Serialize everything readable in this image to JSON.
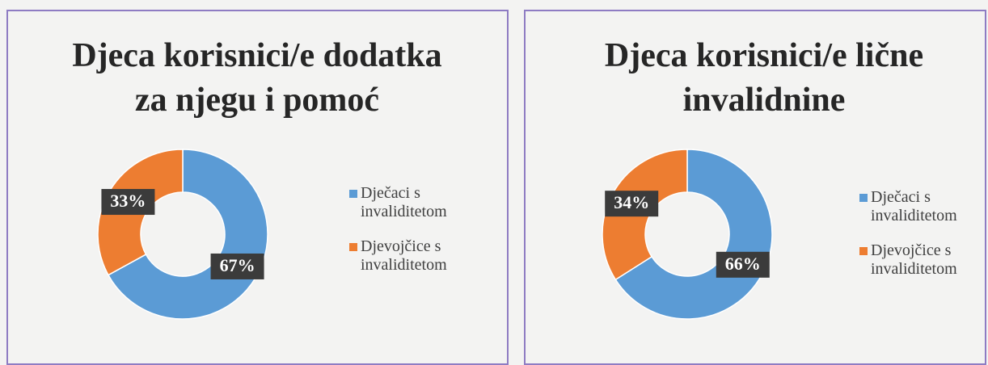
{
  "chart_data": [
    {
      "type": "donut",
      "title": "Djeca korisnici/e dodatka za njegu i pomoć",
      "categories": [
        "Dječaci s invaliditetom",
        "Djevojčice s invaliditetom"
      ],
      "values": [
        67,
        33
      ],
      "value_labels": [
        "67%",
        "33%"
      ],
      "colors": [
        "#5b9bd5",
        "#ed7d31"
      ],
      "legend": "right"
    },
    {
      "type": "donut",
      "title": "Djeca korisnici/e lične invalidnine",
      "categories": [
        "Dječaci s invaliditetom",
        "Djevojčice s invaliditetom"
      ],
      "values": [
        66,
        34
      ],
      "value_labels": [
        "66%",
        "34%"
      ],
      "colors": [
        "#5b9bd5",
        "#ed7d31"
      ],
      "legend": "right"
    }
  ]
}
